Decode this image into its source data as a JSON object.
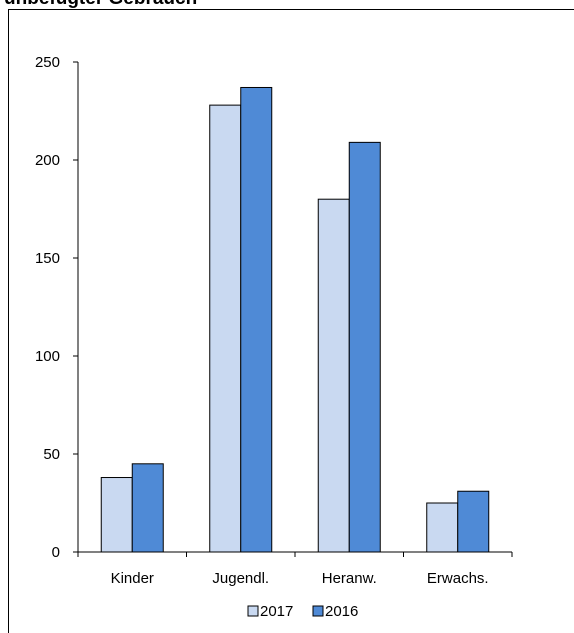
{
  "chart_data": {
    "type": "bar",
    "title": "unbefugter Gebrauch",
    "categories": [
      "Kinder",
      "Jugendl.",
      "Heranw.",
      "Erwachs."
    ],
    "series": [
      {
        "name": "2017",
        "values": [
          38,
          228,
          180,
          25
        ],
        "color": "#c9d9f1"
      },
      {
        "name": "2016",
        "values": [
          45,
          237,
          209,
          31
        ],
        "color": "#4f8ad6"
      }
    ],
    "yticks": [
      0,
      50,
      100,
      150,
      200,
      250
    ],
    "ylim": [
      0,
      250
    ],
    "grid": false,
    "legend": "bottom-center"
  }
}
